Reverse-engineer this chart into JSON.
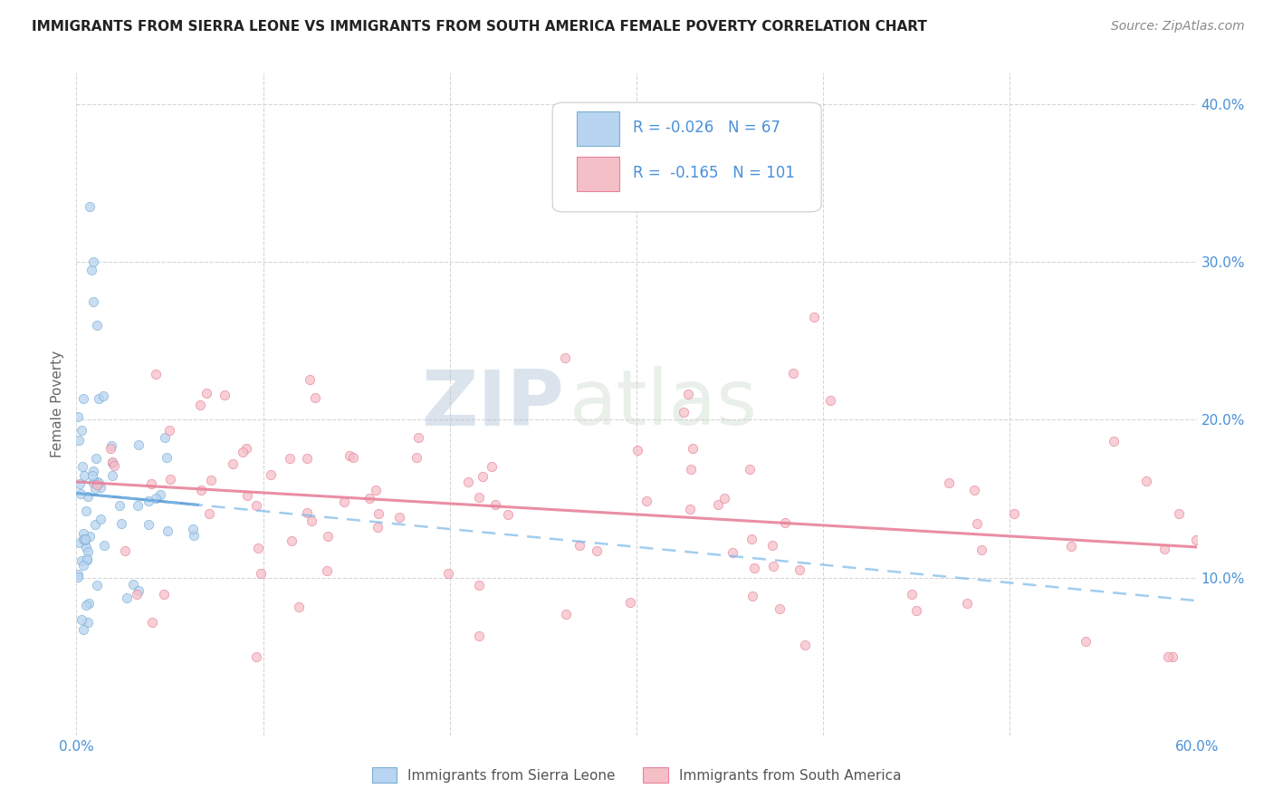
{
  "title": "IMMIGRANTS FROM SIERRA LEONE VS IMMIGRANTS FROM SOUTH AMERICA FEMALE POVERTY CORRELATION CHART",
  "source": "Source: ZipAtlas.com",
  "ylabel": "Female Poverty",
  "watermark_zip": "ZIP",
  "watermark_atlas": "atlas",
  "legend_box": {
    "sierra_leone": {
      "R": -0.026,
      "N": 67,
      "patch_color": "#b8d4f0",
      "patch_edge": "#7aafd4",
      "line_color": "#5b9bd5"
    },
    "south_america": {
      "R": -0.165,
      "N": 101,
      "patch_color": "#f5bfc8",
      "patch_edge": "#e8829a",
      "line_color": "#e8829a"
    }
  },
  "bg_color": "#ffffff",
  "scatter_alpha": 0.75,
  "scatter_size": 55,
  "grid_color": "#cccccc",
  "title_color": "#222222",
  "axis_tick_color": "#4a90d9",
  "ylabel_color": "#666666"
}
